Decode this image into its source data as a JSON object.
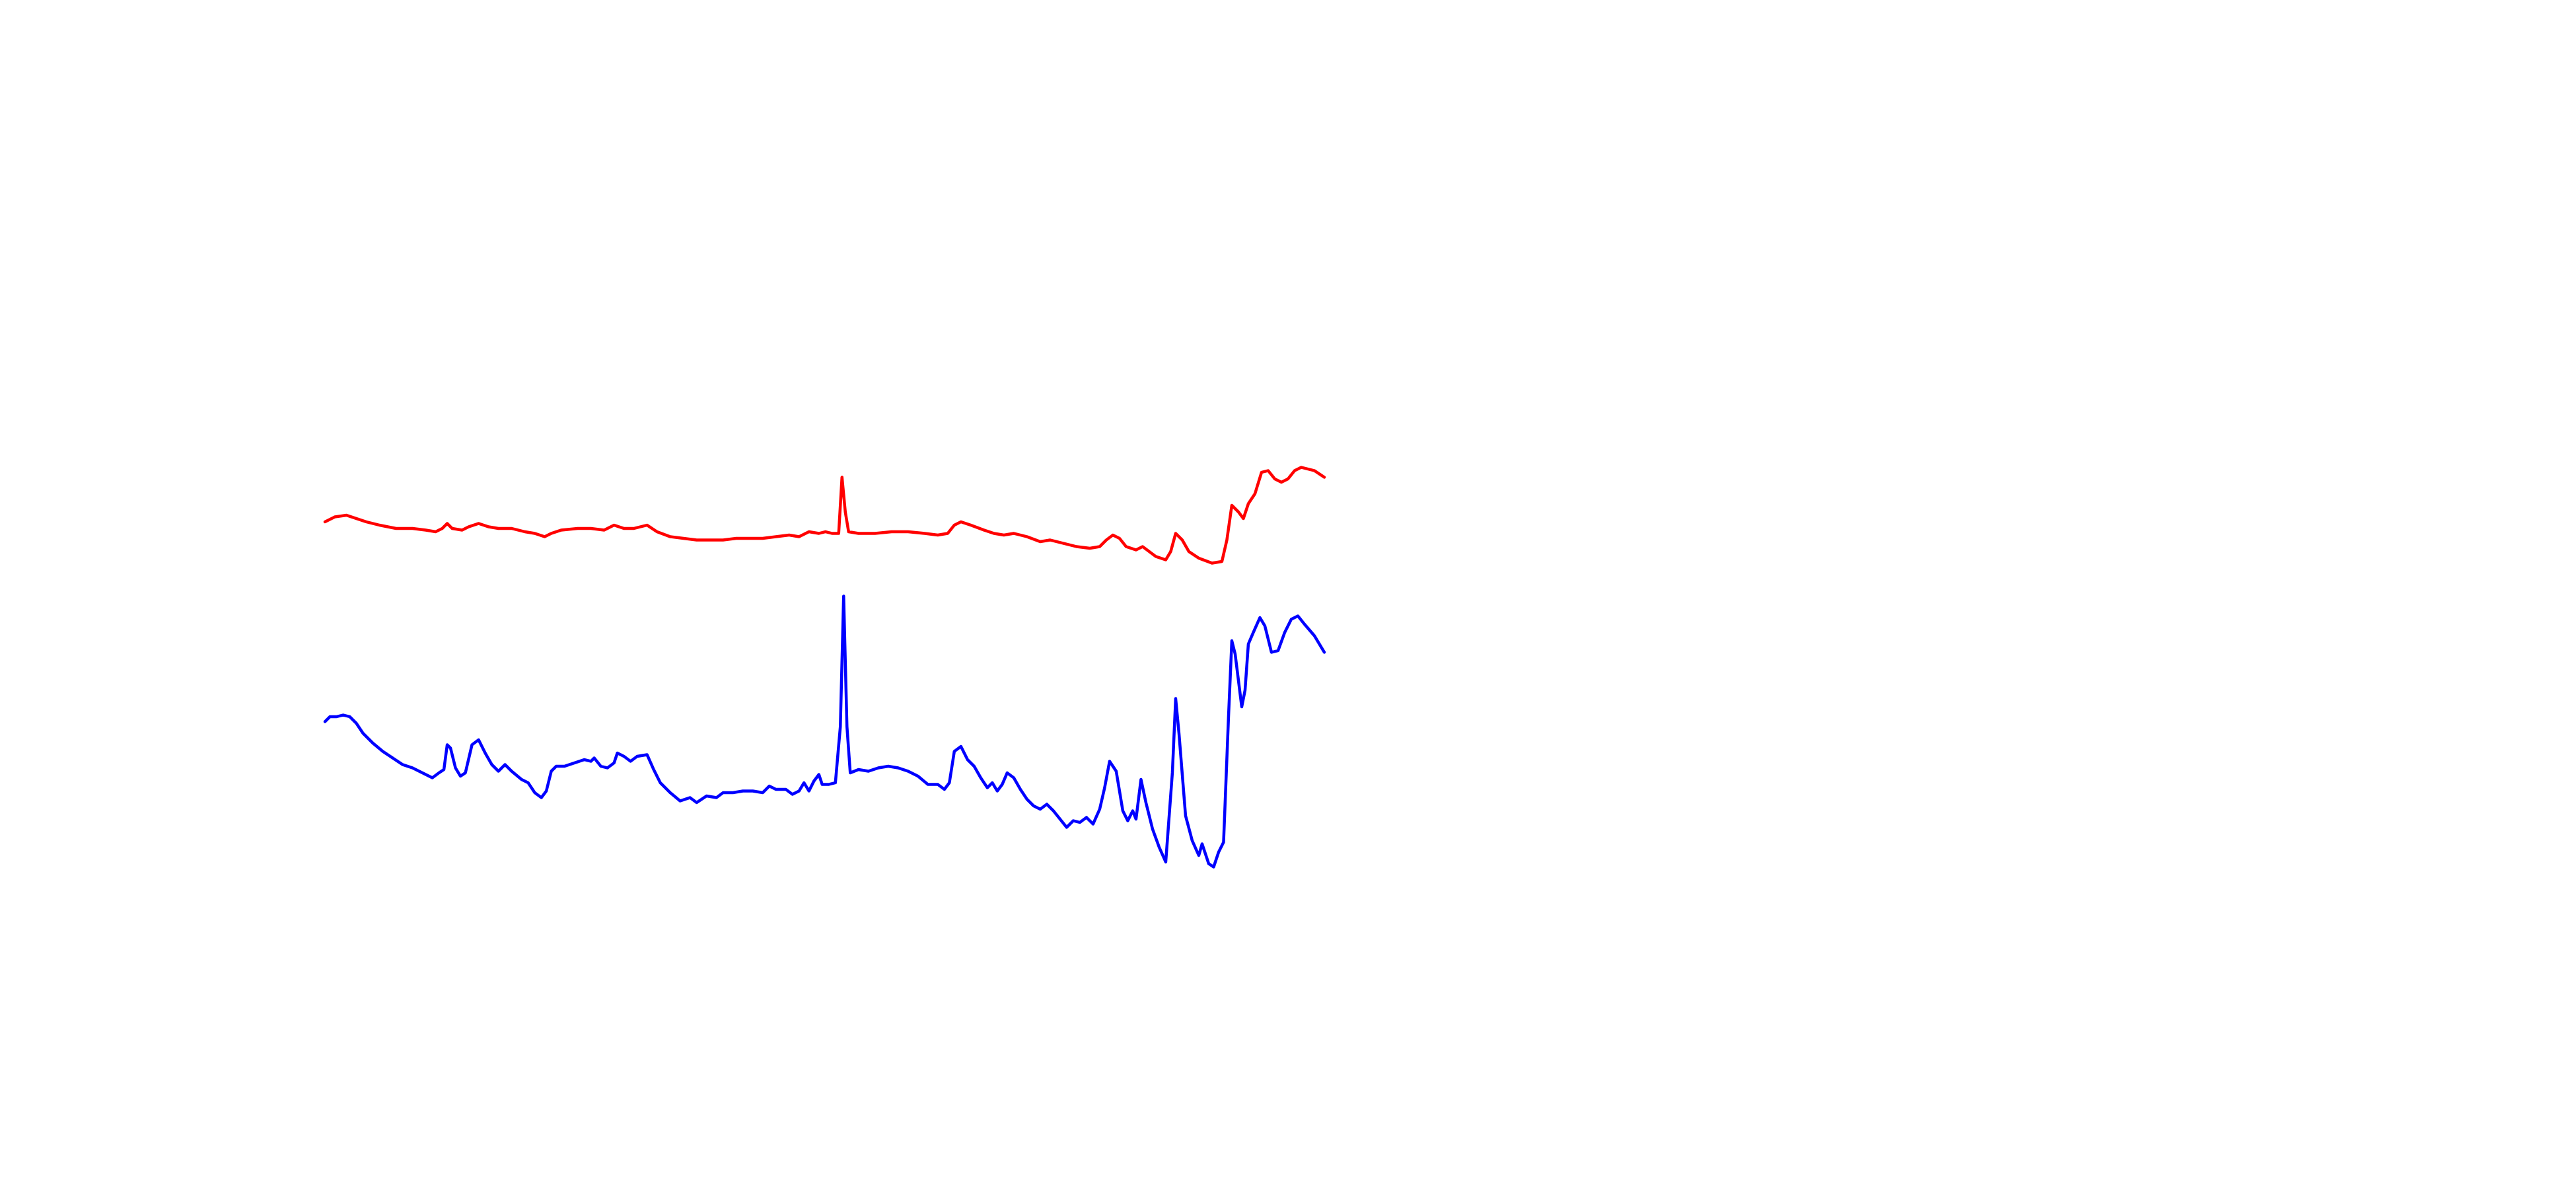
{
  "chart_data": {
    "type": "line",
    "xlim": [
      0,
      605
    ],
    "ylim": [
      180,
      450
    ],
    "series": [
      {
        "color": "#ff0000",
        "x": [
          0,
          6,
          13,
          19,
          25,
          33,
          43,
          53,
          61,
          67,
          71,
          74,
          77,
          83,
          87,
          93,
          99,
          105,
          113,
          121,
          127,
          133,
          137,
          143,
          153,
          161,
          169,
          175,
          181,
          187,
          195,
          201,
          209,
          217,
          225,
          233,
          241,
          249,
          257,
          265,
          273,
          281,
          287,
          293,
          299,
          303,
          307,
          311,
          313,
          315,
          317,
          323,
          333,
          343,
          353,
          363,
          371,
          377,
          381,
          385,
          391,
          399,
          405,
          411,
          417,
          425,
          433,
          439,
          447,
          455,
          463,
          469,
          473,
          477,
          481,
          485,
          491,
          495,
          499,
          503,
          509,
          512,
          515,
          519,
          523,
          529,
          537,
          543,
          546,
          549,
          553,
          556,
          559,
          563,
          567,
          571,
          575,
          579,
          583,
          587,
          591,
          599,
          605
        ],
        "values": [
          404,
          407,
          408,
          406,
          404,
          402,
          400,
          400,
          399,
          398,
          400,
          403,
          400,
          399,
          401,
          403,
          401,
          400,
          400,
          398,
          397,
          395,
          397,
          399,
          400,
          400,
          399,
          402,
          400,
          400,
          402,
          398,
          395,
          394,
          393,
          393,
          393,
          394,
          394,
          394,
          395,
          396,
          395,
          398,
          397,
          398,
          397,
          397,
          431,
          410,
          398,
          397,
          397,
          398,
          398,
          397,
          396,
          397,
          402,
          404,
          402,
          399,
          397,
          396,
          397,
          395,
          392,
          393,
          391,
          389,
          388,
          389,
          393,
          396,
          394,
          389,
          387,
          389,
          386,
          383,
          381,
          386,
          397,
          393,
          386,
          382,
          379,
          380,
          393,
          414,
          410,
          406,
          415,
          421,
          434,
          435,
          430,
          428,
          430,
          435,
          437,
          435,
          431
        ]
      },
      {
        "color": "#0000ff",
        "x": [
          0,
          3,
          7,
          11,
          15,
          19,
          23,
          29,
          35,
          41,
          47,
          53,
          59,
          65,
          69,
          72,
          74,
          76,
          79,
          82,
          85,
          89,
          93,
          97,
          101,
          105,
          109,
          113,
          119,
          123,
          127,
          131,
          134,
          137,
          140,
          145,
          151,
          157,
          161,
          163,
          167,
          171,
          175,
          177,
          181,
          185,
          189,
          195,
          199,
          203,
          209,
          215,
          221,
          225,
          231,
          237,
          241,
          247,
          253,
          259,
          265,
          269,
          273,
          279,
          283,
          287,
          290,
          293,
          296,
          299,
          301,
          305,
          309,
          312,
          314,
          316,
          318,
          323,
          329,
          335,
          341,
          347,
          353,
          359,
          365,
          371,
          375,
          378,
          381,
          385,
          389,
          393,
          397,
          401,
          404,
          407,
          410,
          413,
          417,
          421,
          425,
          429,
          433,
          437,
          441,
          445,
          449,
          453,
          457,
          461,
          465,
          469,
          472,
          475,
          479,
          483,
          486,
          489,
          491,
          494,
          497,
          501,
          505,
          509,
          513,
          515,
          517,
          521,
          525,
          529,
          531,
          535,
          538,
          541,
          544,
          547,
          549,
          551,
          555,
          557,
          559,
          562,
          566,
          569,
          573,
          577,
          581,
          585,
          589,
          593,
          599,
          605
        ],
        "values": [
          283,
          286,
          286,
          287,
          286,
          282,
          276,
          270,
          265,
          261,
          257,
          255,
          252,
          249,
          252,
          254,
          269,
          267,
          255,
          250,
          252,
          269,
          272,
          264,
          257,
          253,
          257,
          253,
          248,
          246,
          240,
          237,
          241,
          253,
          256,
          256,
          258,
          260,
          259,
          261,
          256,
          255,
          258,
          264,
          262,
          259,
          262,
          263,
          254,
          246,
          240,
          235,
          237,
          234,
          238,
          237,
          240,
          240,
          241,
          241,
          240,
          244,
          242,
          242,
          239,
          241,
          246,
          241,
          247,
          251,
          245,
          245,
          246,
          280,
          359,
          280,
          252,
          254,
          253,
          255,
          256,
          255,
          253,
          250,
          245,
          245,
          242,
          246,
          265,
          268,
          260,
          256,
          249,
          243,
          246,
          241,
          245,
          252,
          249,
          242,
          236,
          232,
          230,
          233,
          229,
          224,
          219,
          223,
          222,
          225,
          221,
          230,
          243,
          259,
          253,
          229,
          223,
          229,
          224,
          248,
          234,
          218,
          207,
          198,
          252,
          297,
          276,
          226,
          211,
          202,
          209,
          197,
          195,
          204,
          210,
          286,
          332,
          324,
          292,
          302,
          330,
          337,
          346,
          341,
          325,
          326,
          337,
          345,
          347,
          342,
          335,
          325
        ]
      }
    ]
  }
}
